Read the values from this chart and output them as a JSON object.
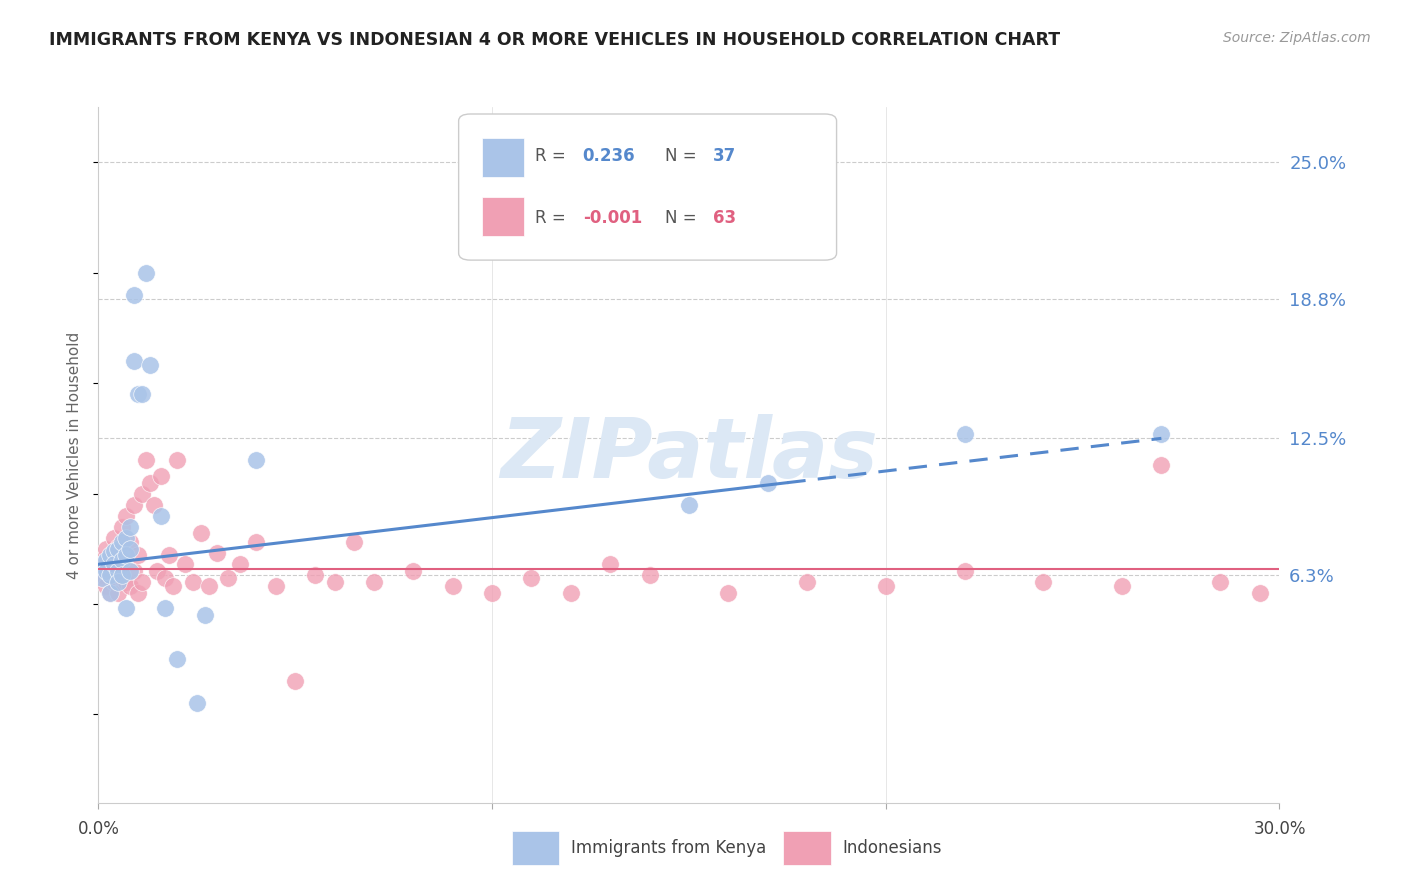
{
  "title": "IMMIGRANTS FROM KENYA VS INDONESIAN 4 OR MORE VEHICLES IN HOUSEHOLD CORRELATION CHART",
  "source": "Source: ZipAtlas.com",
  "ylabel": "4 or more Vehicles in Household",
  "yticks": [
    "25.0%",
    "18.8%",
    "12.5%",
    "6.3%"
  ],
  "ytick_vals": [
    0.25,
    0.188,
    0.125,
    0.063
  ],
  "xmin": 0.0,
  "xmax": 0.3,
  "ymin": -0.04,
  "ymax": 0.275,
  "legend_kenya_r": "0.236",
  "legend_kenya_n": "37",
  "legend_indo_r": "-0.001",
  "legend_indo_n": "63",
  "legend_labels": [
    "Immigrants from Kenya",
    "Indonesians"
  ],
  "color_kenya": "#aac4e8",
  "color_indo": "#f0a0b4",
  "color_kenya_line": "#5588cc",
  "color_indo_line": "#e06080",
  "watermark_text": "ZIPatlas",
  "kenya_x": [
    0.001,
    0.001,
    0.002,
    0.002,
    0.003,
    0.003,
    0.003,
    0.004,
    0.004,
    0.005,
    0.005,
    0.005,
    0.006,
    0.006,
    0.006,
    0.007,
    0.007,
    0.007,
    0.008,
    0.008,
    0.008,
    0.009,
    0.009,
    0.01,
    0.011,
    0.012,
    0.013,
    0.016,
    0.017,
    0.02,
    0.025,
    0.027,
    0.04,
    0.17,
    0.22,
    0.27,
    0.15
  ],
  "kenya_y": [
    0.068,
    0.062,
    0.07,
    0.065,
    0.072,
    0.063,
    0.055,
    0.074,
    0.068,
    0.075,
    0.065,
    0.06,
    0.078,
    0.07,
    0.063,
    0.08,
    0.072,
    0.048,
    0.085,
    0.075,
    0.065,
    0.16,
    0.19,
    0.145,
    0.145,
    0.2,
    0.158,
    0.09,
    0.048,
    0.025,
    0.005,
    0.045,
    0.115,
    0.105,
    0.127,
    0.127,
    0.095
  ],
  "indo_x": [
    0.001,
    0.001,
    0.002,
    0.002,
    0.003,
    0.003,
    0.004,
    0.004,
    0.004,
    0.005,
    0.005,
    0.005,
    0.006,
    0.006,
    0.007,
    0.007,
    0.008,
    0.008,
    0.009,
    0.009,
    0.01,
    0.01,
    0.011,
    0.011,
    0.012,
    0.013,
    0.014,
    0.015,
    0.016,
    0.017,
    0.018,
    0.019,
    0.02,
    0.022,
    0.024,
    0.026,
    0.028,
    0.03,
    0.033,
    0.036,
    0.04,
    0.045,
    0.05,
    0.055,
    0.06,
    0.065,
    0.07,
    0.08,
    0.09,
    0.1,
    0.11,
    0.12,
    0.13,
    0.14,
    0.16,
    0.18,
    0.2,
    0.22,
    0.24,
    0.26,
    0.27,
    0.285,
    0.295
  ],
  "indo_y": [
    0.07,
    0.063,
    0.075,
    0.058,
    0.068,
    0.055,
    0.08,
    0.07,
    0.06,
    0.076,
    0.065,
    0.055,
    0.085,
    0.062,
    0.09,
    0.06,
    0.078,
    0.058,
    0.095,
    0.065,
    0.072,
    0.055,
    0.1,
    0.06,
    0.115,
    0.105,
    0.095,
    0.065,
    0.108,
    0.062,
    0.072,
    0.058,
    0.115,
    0.068,
    0.06,
    0.082,
    0.058,
    0.073,
    0.062,
    0.068,
    0.078,
    0.058,
    0.015,
    0.063,
    0.06,
    0.078,
    0.06,
    0.065,
    0.058,
    0.055,
    0.062,
    0.055,
    0.068,
    0.063,
    0.055,
    0.06,
    0.058,
    0.065,
    0.06,
    0.058,
    0.113,
    0.06,
    0.055
  ]
}
